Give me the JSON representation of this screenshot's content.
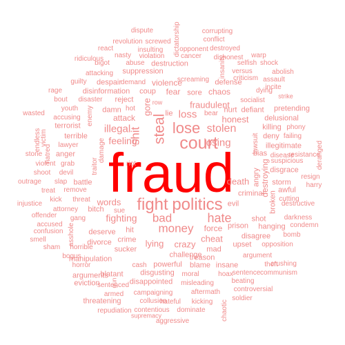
{
  "colors": {
    "primary": "#ff0000",
    "secondary": "#f08a8a"
  },
  "words": [
    {
      "text": "fraud",
      "primary": true
    },
    {
      "text": "fight"
    },
    {
      "text": "politics"
    },
    {
      "text": "court"
    },
    {
      "text": "lose"
    },
    {
      "text": "steal"
    },
    {
      "text": "money"
    },
    {
      "text": "hate"
    },
    {
      "text": "shit"
    },
    {
      "text": "gore"
    },
    {
      "text": "bad"
    },
    {
      "text": "stolen"
    },
    {
      "text": "losing"
    },
    {
      "text": "illegal"
    },
    {
      "text": "feeling"
    },
    {
      "text": "loss"
    },
    {
      "text": "fraudulent"
    },
    {
      "text": "fighting"
    },
    {
      "text": "words"
    },
    {
      "text": "crazy"
    },
    {
      "text": "lying"
    },
    {
      "text": "death"
    },
    {
      "text": "honest"
    },
    {
      "text": "cheat"
    },
    {
      "text": "force"
    },
    {
      "text": "violence"
    },
    {
      "text": "fear"
    },
    {
      "text": "chaos"
    },
    {
      "text": "attack"
    },
    {
      "text": "evil"
    },
    {
      "text": "criminal"
    },
    {
      "text": "prison"
    },
    {
      "text": "deserve"
    },
    {
      "text": "hit"
    },
    {
      "text": "crime"
    },
    {
      "text": "sucker"
    },
    {
      "text": "challenge"
    },
    {
      "text": "mad"
    },
    {
      "text": "treason"
    },
    {
      "text": "coup"
    },
    {
      "text": "sore"
    },
    {
      "text": "defense"
    },
    {
      "text": "reject"
    },
    {
      "text": "damn"
    },
    {
      "text": "hot"
    },
    {
      "text": "row"
    },
    {
      "text": "lie"
    },
    {
      "text": "bear"
    },
    {
      "text": "hurt"
    },
    {
      "text": "defiant"
    },
    {
      "text": "socialist"
    },
    {
      "text": "dying"
    },
    {
      "text": "strike"
    },
    {
      "text": "pretending"
    },
    {
      "text": "delusional"
    },
    {
      "text": "killing"
    },
    {
      "text": "phony"
    },
    {
      "text": "deny"
    },
    {
      "text": "failing"
    },
    {
      "text": "illegitimate"
    },
    {
      "text": "disease"
    },
    {
      "text": "bias"
    },
    {
      "text": "lawsuit"
    },
    {
      "text": "disgrace"
    },
    {
      "text": "suspicious"
    },
    {
      "text": "destroying"
    },
    {
      "text": "angry"
    },
    {
      "text": "storm"
    },
    {
      "text": "awful"
    },
    {
      "text": "cutting"
    },
    {
      "text": "destructive"
    },
    {
      "text": "harry"
    },
    {
      "text": "resign"
    },
    {
      "text": "deranged"
    },
    {
      "text": "broken"
    },
    {
      "text": "darkness"
    },
    {
      "text": "condemn"
    },
    {
      "text": "hanging"
    },
    {
      "text": "shot"
    },
    {
      "text": "disagree"
    },
    {
      "text": "bomb"
    },
    {
      "text": "opposition"
    },
    {
      "text": "upset"
    },
    {
      "text": "argument"
    },
    {
      "text": "crushing"
    },
    {
      "text": "sentence"
    },
    {
      "text": "theft"
    },
    {
      "text": "insane"
    },
    {
      "text": "hoax"
    },
    {
      "text": "communism"
    },
    {
      "text": "beating"
    },
    {
      "text": "controversial"
    },
    {
      "text": "soldier"
    },
    {
      "text": "chaotic"
    },
    {
      "text": "blame"
    },
    {
      "text": "moral"
    },
    {
      "text": "misleading"
    },
    {
      "text": "aftermath"
    },
    {
      "text": "dominate"
    },
    {
      "text": "kicking"
    },
    {
      "text": "hateful"
    },
    {
      "text": "powerful"
    },
    {
      "text": "cash"
    },
    {
      "text": "disgusting"
    },
    {
      "text": "disappointed"
    },
    {
      "text": "campaigning"
    },
    {
      "text": "collusion"
    },
    {
      "text": "contentious"
    },
    {
      "text": "supremacy"
    },
    {
      "text": "aggressive"
    },
    {
      "text": "repudiation"
    },
    {
      "text": "threatening"
    },
    {
      "text": "armed"
    },
    {
      "text": "eviction"
    },
    {
      "text": "sentenced"
    },
    {
      "text": "arguments"
    },
    {
      "text": "blatant"
    },
    {
      "text": "horror"
    },
    {
      "text": "gun"
    },
    {
      "text": "bogus"
    },
    {
      "text": "manipulation"
    },
    {
      "text": "sham"
    },
    {
      "text": "horrible"
    },
    {
      "text": "divorce"
    },
    {
      "text": "smell"
    },
    {
      "text": "confusion"
    },
    {
      "text": "accused"
    },
    {
      "text": "offender"
    },
    {
      "text": "asshole"
    },
    {
      "text": "gang"
    },
    {
      "text": "bitch"
    },
    {
      "text": "sue"
    },
    {
      "text": "attorney"
    },
    {
      "text": "threat"
    },
    {
      "text": "kick"
    },
    {
      "text": "injustice"
    },
    {
      "text": "treat"
    },
    {
      "text": "remove"
    },
    {
      "text": "battle"
    },
    {
      "text": "devil"
    },
    {
      "text": "slap"
    },
    {
      "text": "shoot"
    },
    {
      "text": "violent"
    },
    {
      "text": "outrage"
    },
    {
      "text": "grab"
    },
    {
      "text": "stone"
    },
    {
      "text": "hatred"
    },
    {
      "text": "endless"
    },
    {
      "text": "victim"
    },
    {
      "text": "anger"
    },
    {
      "text": "lawyer"
    },
    {
      "text": "terrible"
    },
    {
      "text": "terrorist"
    },
    {
      "text": "traitor"
    },
    {
      "text": "damage"
    },
    {
      "text": "riot"
    },
    {
      "text": "wasted"
    },
    {
      "text": "accusing"
    },
    {
      "text": "youth"
    },
    {
      "text": "enemy"
    },
    {
      "text": "bout"
    },
    {
      "text": "disaster"
    },
    {
      "text": "rage"
    },
    {
      "text": "disinformation"
    },
    {
      "text": "guilty"
    },
    {
      "text": "despair"
    },
    {
      "text": "demand"
    },
    {
      "text": "attacking"
    },
    {
      "text": "suppression"
    },
    {
      "text": "screaming"
    },
    {
      "text": "bigot"
    },
    {
      "text": "abuse"
    },
    {
      "text": "destruction"
    },
    {
      "text": "ridiculous"
    },
    {
      "text": "nasty"
    },
    {
      "text": "violation"
    },
    {
      "text": "react"
    },
    {
      "text": "insulting"
    },
    {
      "text": "revolution"
    },
    {
      "text": "screwed"
    },
    {
      "text": "dispute"
    },
    {
      "text": "dictatorship"
    },
    {
      "text": "opponent"
    },
    {
      "text": "cancer"
    },
    {
      "text": "destroyed"
    },
    {
      "text": "conflict"
    },
    {
      "text": "corrupting"
    },
    {
      "text": "insanity"
    },
    {
      "text": "warp"
    },
    {
      "text": "dishonest"
    },
    {
      "text": "selfish"
    },
    {
      "text": "shock"
    },
    {
      "text": "versus"
    },
    {
      "text": "abolish"
    },
    {
      "text": "criticism"
    },
    {
      "text": "assault"
    },
    {
      "text": "incite"
    },
    {
      "text": "resistance"
    },
    {
      "text": "stink"
    }
  ]
}
